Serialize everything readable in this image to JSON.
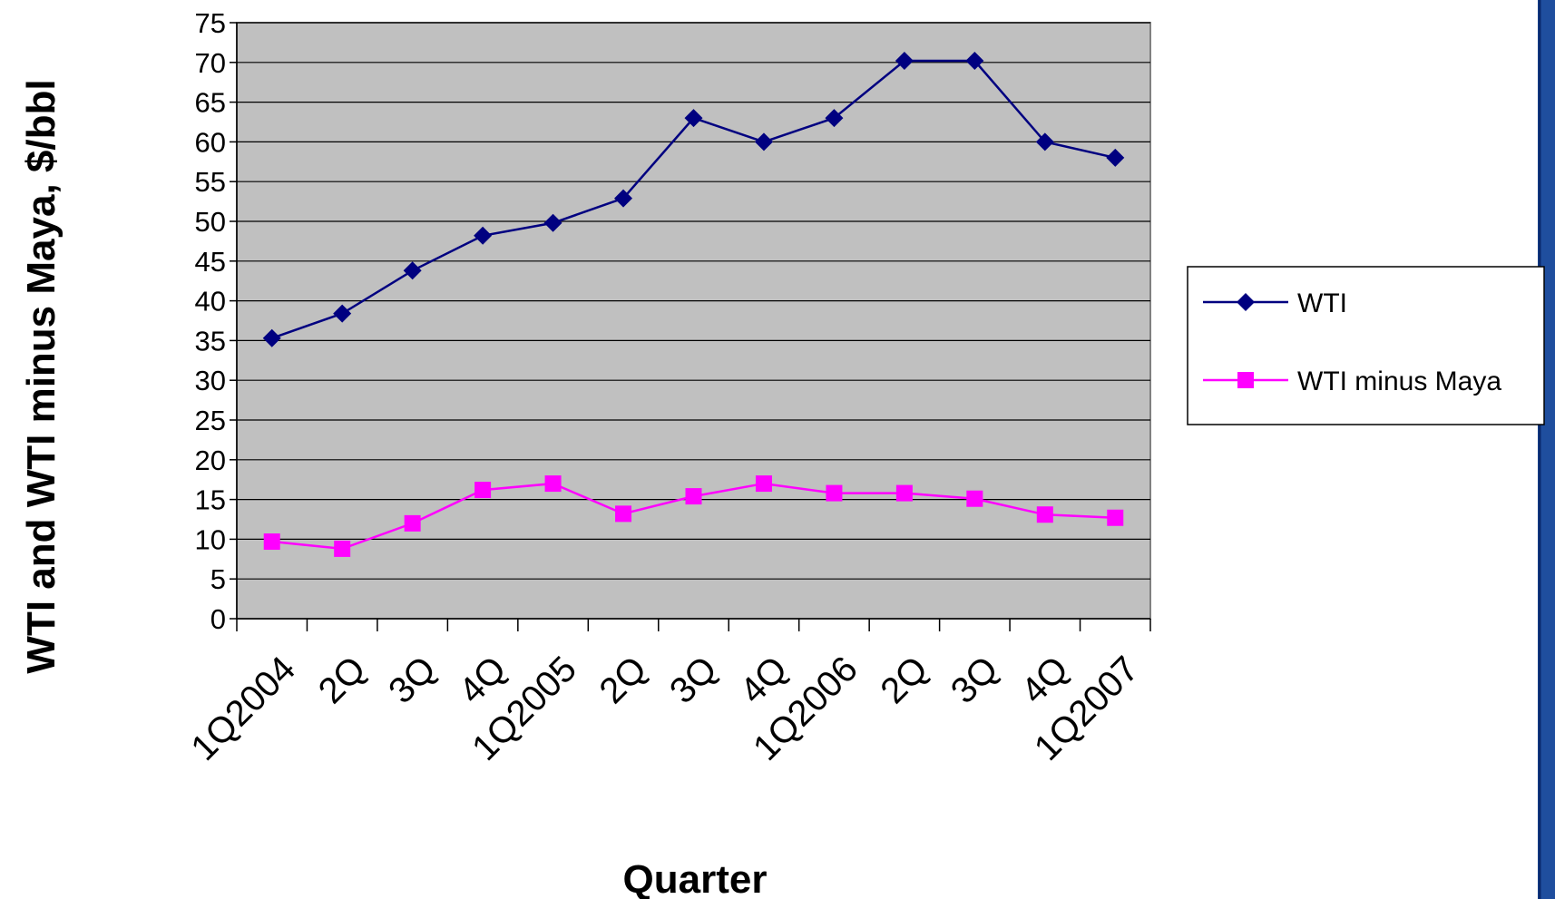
{
  "chart_data": {
    "type": "line",
    "categories": [
      "1Q2004",
      "2Q",
      "3Q",
      "4Q",
      "1Q2005",
      "2Q",
      "3Q",
      "4Q",
      "1Q2006",
      "2Q",
      "3Q",
      "4Q",
      "1Q2007"
    ],
    "series": [
      {
        "name": "WTI",
        "color": "#000080",
        "marker": "diamond",
        "values": [
          35.3,
          38.4,
          43.8,
          48.2,
          49.8,
          52.9,
          63.0,
          60.0,
          63.0,
          70.2,
          70.2,
          60.0,
          58.0
        ]
      },
      {
        "name": "WTI minus Maya",
        "color": "#ff00ff",
        "marker": "square",
        "values": [
          9.7,
          8.8,
          12.0,
          16.2,
          17.0,
          13.2,
          15.4,
          17.0,
          15.8,
          15.8,
          15.1,
          13.1,
          12.7
        ]
      }
    ],
    "xlabel": "Quarter",
    "ylabel": "WTI and WTI minus Maya, $/bbl",
    "ylim": [
      0,
      75
    ],
    "yticks": [
      0,
      5,
      10,
      15,
      20,
      25,
      30,
      35,
      40,
      45,
      50,
      55,
      60,
      65,
      70,
      75
    ],
    "grid": true,
    "legend_position": "right",
    "plot_background": "#c0c0c0"
  }
}
